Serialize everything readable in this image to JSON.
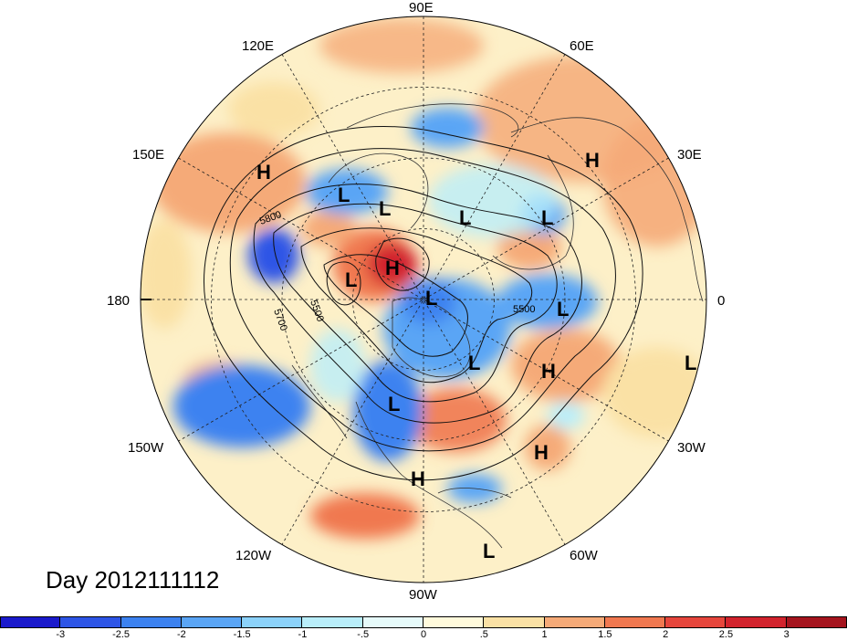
{
  "map": {
    "projection": "north-polar-stereographic",
    "longitude_labels": [
      {
        "text": "90E",
        "lon": 90
      },
      {
        "text": "60E",
        "lon": 60
      },
      {
        "text": "30E",
        "lon": 30
      },
      {
        "text": "0",
        "lon": 0
      },
      {
        "text": "30W",
        "lon": -30
      },
      {
        "text": "60W",
        "lon": -60
      },
      {
        "text": "90W",
        "lon": -90
      },
      {
        "text": "120W",
        "lon": -120
      },
      {
        "text": "150W",
        "lon": -150
      },
      {
        "text": "180",
        "lon": 180
      },
      {
        "text": "150E",
        "lon": 150
      },
      {
        "text": "120E",
        "lon": 120
      }
    ],
    "pressure_systems": [
      {
        "type": "H",
        "region": "NE Asia"
      },
      {
        "type": "L",
        "region": "East Siberia"
      },
      {
        "type": "L",
        "region": "Siberia"
      },
      {
        "type": "L",
        "region": "Central Siberia"
      },
      {
        "type": "L",
        "region": "Caspian"
      },
      {
        "type": "H",
        "region": "Middle East"
      },
      {
        "type": "H",
        "region": "Bering Sea"
      },
      {
        "type": "L",
        "region": "Bering Strait"
      },
      {
        "type": "L",
        "region": "Arctic Ocean"
      },
      {
        "type": "L",
        "region": "Scandinavia"
      },
      {
        "type": "L",
        "region": "Greenland"
      },
      {
        "type": "H",
        "region": "North Atlantic"
      },
      {
        "type": "L",
        "region": "West Africa"
      },
      {
        "type": "L",
        "region": "Canada"
      },
      {
        "type": "H",
        "region": "Central Atlantic"
      },
      {
        "type": "H",
        "region": "Gulf of Mexico"
      },
      {
        "type": "L",
        "region": "Equatorial Atlantic"
      }
    ],
    "contour_labels": [
      "5800",
      "5700",
      "5500",
      "5500"
    ]
  },
  "title": "Day 2012111112",
  "colorbar": {
    "ticks": [
      "-3",
      "-2.5",
      "-2",
      "-1.5",
      "-1",
      "-.5",
      "0",
      ".5",
      "1",
      "1.5",
      "2",
      "2.5",
      "3"
    ],
    "colors": [
      "#1a1acc",
      "#2d55e6",
      "#3c82f0",
      "#5aa5f5",
      "#8cd2fa",
      "#b9eefa",
      "#e6fafa",
      "#fffadc",
      "#fae1a5",
      "#f5aa78",
      "#f07850",
      "#e6463c",
      "#d2232d",
      "#a5141e"
    ]
  }
}
